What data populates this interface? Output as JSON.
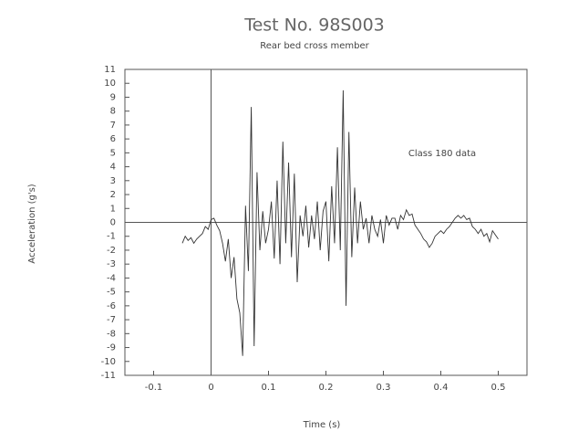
{
  "chart_data": {
    "type": "line",
    "title": "Test No. 98S003",
    "subtitle": "Rear bed cross member",
    "annotation": "Class 180 data",
    "x_label": "Time (s)",
    "y_label": "Acceleration (g's)",
    "x": [
      -0.05,
      -0.045,
      -0.04,
      -0.035,
      -0.03,
      -0.025,
      -0.02,
      -0.015,
      -0.01,
      -0.005,
      0,
      0.005,
      0.01,
      0.015,
      0.02,
      0.025,
      0.03,
      0.035,
      0.04,
      0.045,
      0.05,
      0.055,
      0.06,
      0.065,
      0.07,
      0.075,
      0.08,
      0.085,
      0.09,
      0.095,
      0.1,
      0.105,
      0.11,
      0.115,
      0.12,
      0.125,
      0.13,
      0.135,
      0.14,
      0.145,
      0.15,
      0.155,
      0.16,
      0.165,
      0.17,
      0.175,
      0.18,
      0.185,
      0.19,
      0.195,
      0.2,
      0.205,
      0.21,
      0.215,
      0.22,
      0.225,
      0.23,
      0.235,
      0.24,
      0.245,
      0.25,
      0.255,
      0.26,
      0.265,
      0.27,
      0.275,
      0.28,
      0.285,
      0.29,
      0.295,
      0.3,
      0.305,
      0.31,
      0.315,
      0.32,
      0.325,
      0.33,
      0.335,
      0.34,
      0.345,
      0.35,
      0.355,
      0.36,
      0.365,
      0.37,
      0.375,
      0.38,
      0.385,
      0.39,
      0.395,
      0.4,
      0.405,
      0.41,
      0.415,
      0.42,
      0.425,
      0.43,
      0.435,
      0.44,
      0.445,
      0.45,
      0.455,
      0.46,
      0.465,
      0.47,
      0.475,
      0.48,
      0.485,
      0.49,
      0.495,
      0.5
    ],
    "series": [
      {
        "color": "#333333",
        "values": [
          -1.5,
          -1.0,
          -1.3,
          -1.1,
          -1.5,
          -1.2,
          -1.0,
          -0.8,
          -0.3,
          -0.5,
          0.2,
          0.3,
          -0.2,
          -0.6,
          -1.5,
          -2.8,
          -1.2,
          -4.0,
          -2.5,
          -5.5,
          -6.5,
          -9.6,
          1.2,
          -3.5,
          8.3,
          -8.9,
          3.6,
          -2.0,
          0.8,
          -1.5,
          -0.5,
          1.5,
          -2.6,
          3.0,
          -3.0,
          5.8,
          -1.5,
          4.3,
          -2.5,
          3.5,
          -4.3,
          0.5,
          -1.0,
          1.2,
          -1.8,
          0.5,
          -1.2,
          1.5,
          -2.0,
          0.8,
          1.5,
          -2.8,
          2.6,
          -1.5,
          5.4,
          -2.0,
          9.5,
          -6.0,
          6.5,
          -2.5,
          2.5,
          -1.5,
          1.5,
          -0.5,
          0.3,
          -1.5,
          0.5,
          -0.5,
          -1.0,
          0.2,
          -1.5,
          0.5,
          -0.2,
          0.3,
          0.3,
          -0.5,
          0.5,
          0.2,
          0.9,
          0.5,
          0.6,
          -0.2,
          -0.5,
          -0.8,
          -1.2,
          -1.4,
          -1.8,
          -1.5,
          -1.0,
          -0.8,
          -0.6,
          -0.8,
          -0.5,
          -0.3,
          0.0,
          0.3,
          0.5,
          0.3,
          0.5,
          0.2,
          0.3,
          -0.3,
          -0.5,
          -0.8,
          -0.5,
          -1.0,
          -0.8,
          -1.4,
          -0.6,
          -0.9,
          -1.2
        ]
      }
    ],
    "xlim": [
      -0.15,
      0.55
    ],
    "xticks": [
      -0.1,
      0,
      0.1,
      0.2,
      0.3,
      0.4,
      0.5
    ],
    "ylim": [
      -11,
      11
    ],
    "yticks": [
      -11,
      -10,
      -9,
      -8,
      -7,
      -6,
      -5,
      -4,
      -3,
      -2,
      -1,
      0,
      1,
      2,
      3,
      4,
      5,
      6,
      7,
      8,
      9,
      10,
      11
    ],
    "grid": false
  }
}
